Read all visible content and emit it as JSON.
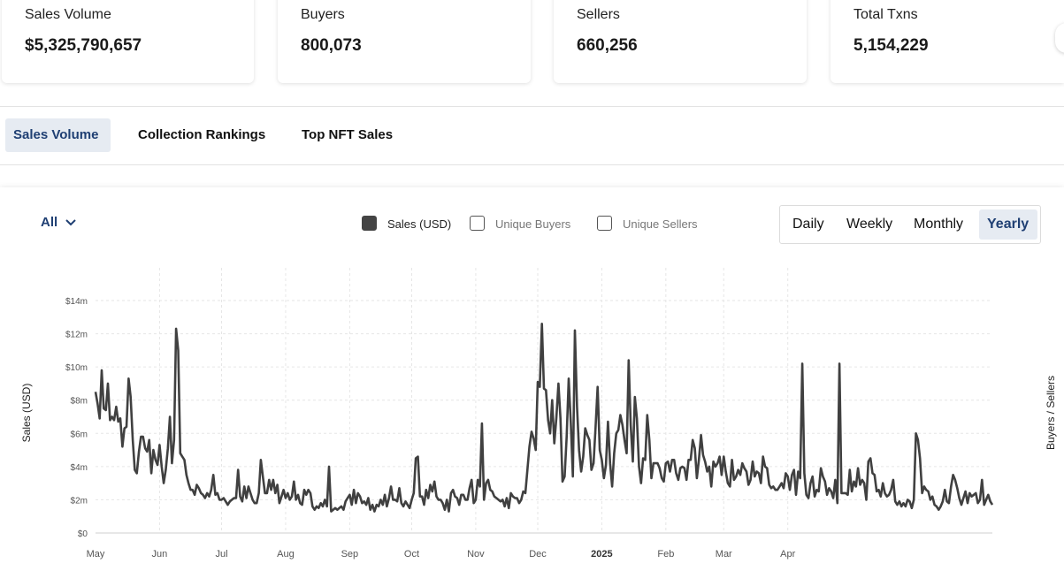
{
  "stats": [
    {
      "label": "Sales Volume",
      "value": "$5,325,790,657"
    },
    {
      "label": "Buyers",
      "value": "800,073"
    },
    {
      "label": "Sellers",
      "value": "660,256"
    },
    {
      "label": "Total Txns",
      "value": "5,154,229"
    }
  ],
  "tabs": [
    {
      "label": "Sales Volume",
      "active": true
    },
    {
      "label": "Collection Rankings",
      "active": false
    },
    {
      "label": "Top NFT Sales",
      "active": false
    }
  ],
  "filter": {
    "label": "All"
  },
  "legend": [
    {
      "label": "Sales (USD)",
      "checked": true
    },
    {
      "label": "Unique Buyers",
      "checked": false
    },
    {
      "label": "Unique Sellers",
      "checked": false
    }
  ],
  "ranges": [
    {
      "label": "Daily",
      "active": false
    },
    {
      "label": "Weekly",
      "active": false
    },
    {
      "label": "Monthly",
      "active": false
    },
    {
      "label": "Yearly",
      "active": true
    }
  ],
  "chart_data": {
    "type": "line",
    "ylabel": "Sales (USD)",
    "y2label": "Buyers / Sellers",
    "ylim": [
      0,
      14
    ],
    "y_unit": "millions USD",
    "y_ticks": [
      "$0",
      "$2m",
      "$4m",
      "$6m",
      "$8m",
      "$10m",
      "$12m",
      "$14m"
    ],
    "x_ticks": [
      {
        "label": "May",
        "bold": false
      },
      {
        "label": "Jun",
        "bold": false
      },
      {
        "label": "Jul",
        "bold": false
      },
      {
        "label": "Aug",
        "bold": false
      },
      {
        "label": "Sep",
        "bold": false
      },
      {
        "label": "Oct",
        "bold": false
      },
      {
        "label": "Nov",
        "bold": false
      },
      {
        "label": "Dec",
        "bold": false
      },
      {
        "label": "2025",
        "bold": true
      },
      {
        "label": "Feb",
        "bold": false
      },
      {
        "label": "Mar",
        "bold": false
      },
      {
        "label": "Apr",
        "bold": false
      }
    ],
    "grid": true,
    "series": [
      {
        "name": "Sales (USD)",
        "color": "#404040",
        "x_start": "2024-05-01",
        "values": [
          8.5,
          7.8,
          6.9,
          9.8,
          7.5,
          7.4,
          9.0,
          6.8,
          7.0,
          6.8,
          7.6,
          6.7,
          6.9,
          5.2,
          6.3,
          6.4,
          9.3,
          8.2,
          5.6,
          3.8,
          3.6,
          4.9,
          5.8,
          5.8,
          5.1,
          4.9,
          5.6,
          3.6,
          5.0,
          4.4,
          4.1,
          5.3,
          4.0,
          3.0,
          3.8,
          5.1,
          7.0,
          4.2,
          5.6,
          12.3,
          11.0,
          4.8,
          4.6,
          4.4,
          3.5,
          3.0,
          2.6,
          2.6,
          2.3,
          2.9,
          2.7,
          2.4,
          2.3,
          2.1,
          2.4,
          2.2,
          2.6,
          3.5,
          2.3,
          2.4,
          2.0,
          2.0,
          2.1,
          1.9,
          1.7,
          1.9,
          2.0,
          2.1,
          2.1,
          3.8,
          2.2,
          1.9,
          2.8,
          2.1,
          2.8,
          2.4,
          2.0,
          1.8,
          1.8,
          2.4,
          4.4,
          3.4,
          2.4,
          2.4,
          3.2,
          2.6,
          3.2,
          2.4,
          2.9,
          1.8,
          2.2,
          2.6,
          2.1,
          2.4,
          2.0,
          2.2,
          3.1,
          2.0,
          2.3,
          1.8,
          1.7,
          2.6,
          2.3,
          2.6,
          2.4,
          1.6,
          1.4,
          1.6,
          1.5,
          1.8,
          1.6,
          2.0,
          1.6,
          4.0,
          1.3,
          1.4,
          1.5,
          1.4,
          1.5,
          1.6,
          1.4,
          1.9,
          2.1,
          2.3,
          1.7,
          2.6,
          1.8,
          2.4,
          2.2,
          1.8,
          1.9,
          1.7,
          2.1,
          1.4,
          1.7,
          1.3,
          1.7,
          1.6,
          2.0,
          1.7,
          2.3,
          1.6,
          2.1,
          2.8,
          2.0,
          2.0,
          1.9,
          2.7,
          1.8,
          1.6,
          1.9,
          1.7,
          1.5,
          2.0,
          2.4,
          4.5,
          4.6,
          2.2,
          2.2,
          1.7,
          2.6,
          2.1,
          2.9,
          2.5,
          3.1,
          2.2,
          2.0,
          2.0,
          1.8,
          1.4,
          2.0,
          1.3,
          2.4,
          2.6,
          2.2,
          2.1,
          1.7,
          2.3,
          2.3,
          2.0,
          2.0,
          2.7,
          3.2,
          1.8,
          2.0,
          3.2,
          2.8,
          6.6,
          2.0,
          3.0,
          3.2,
          2.6,
          2.5,
          2.2,
          2.1,
          2.0,
          1.9,
          2.0,
          1.6,
          2.1,
          1.5,
          2.4,
          2.2,
          2.1,
          2.1,
          1.8,
          2.0,
          2.5,
          2.4,
          3.8,
          5.2,
          6.1,
          5.7,
          5.0,
          9.1,
          8.8,
          12.6,
          8.7,
          8.6,
          6.8,
          6.0,
          8.0,
          5.4,
          6.9,
          9.0,
          6.9,
          3.1,
          3.4,
          5.8,
          9.3,
          6.6,
          3.4,
          12.2,
          7.6,
          5.0,
          3.7,
          4.6,
          6.3,
          5.9,
          5.6,
          3.8,
          4.2,
          6.4,
          8.8,
          5.0,
          4.4,
          3.3,
          4.1,
          6.7,
          4.2,
          2.8,
          4.8,
          6.0,
          6.2,
          7.1,
          6.5,
          5.6,
          4.8,
          10.4,
          6.5,
          4.3,
          8.2,
          6.9,
          4.0,
          3.0,
          4.5,
          4.4,
          7.1,
          5.6,
          3.3,
          4.2,
          4.2,
          4.2,
          3.9,
          3.3,
          3.1,
          4.2,
          4.3,
          3.7,
          4.4,
          4.4,
          3.6,
          3.2,
          3.9,
          4.0,
          3.9,
          3.2,
          4.4,
          4.4,
          5.6,
          5.1,
          3.3,
          4.4,
          5.9,
          4.7,
          4.3,
          3.7,
          4.0,
          2.8,
          4.3,
          4.0,
          4.2,
          4.6,
          3.5,
          4.6,
          3.7,
          3.0,
          2.8,
          4.4,
          3.2,
          3.4,
          3.8,
          3.5,
          4.2,
          3.9,
          3.7,
          2.9,
          3.2,
          4.3,
          3.4,
          3.7,
          3.6,
          3.0,
          4.6,
          4.0,
          3.9,
          2.9,
          2.7,
          2.8,
          2.6,
          2.6,
          2.8,
          3.0,
          2.7,
          3.6,
          3.4,
          2.6,
          3.5,
          3.8,
          2.3,
          3.7,
          3.3,
          10.2,
          3.6,
          2.3,
          2.1,
          3.0,
          3.4,
          2.2,
          2.6,
          2.5,
          3.9,
          3.4,
          3.1,
          2.3,
          2.7,
          2.5,
          2.1,
          3.2,
          1.8,
          10.2,
          2.4,
          2.4,
          2.4,
          2.3,
          3.8,
          2.5,
          3.1,
          2.8,
          3.9,
          2.9,
          3.2,
          3.0,
          2.0,
          4.3,
          4.5,
          3.6,
          3.5,
          2.5,
          2.6,
          2.2,
          3.0,
          2.4,
          2.2,
          2.3,
          2.6,
          3.2,
          1.9,
          1.7,
          1.9,
          1.6,
          1.8,
          1.6,
          2.0,
          1.9,
          1.5,
          2.0,
          6.0,
          5.6,
          4.5,
          2.4,
          2.8,
          2.6,
          2.5,
          2.0,
          2.2,
          1.7,
          1.6,
          1.4,
          1.6,
          1.9,
          2.6,
          1.9,
          1.8,
          2.8,
          3.5,
          3.2,
          2.7,
          2.1,
          1.7,
          2.1,
          2.5,
          1.8,
          2.4,
          2.2,
          2.3,
          2.4,
          1.8,
          2.0,
          3.2,
          1.7,
          2.0,
          2.3,
          1.9,
          1.7
        ]
      }
    ]
  }
}
